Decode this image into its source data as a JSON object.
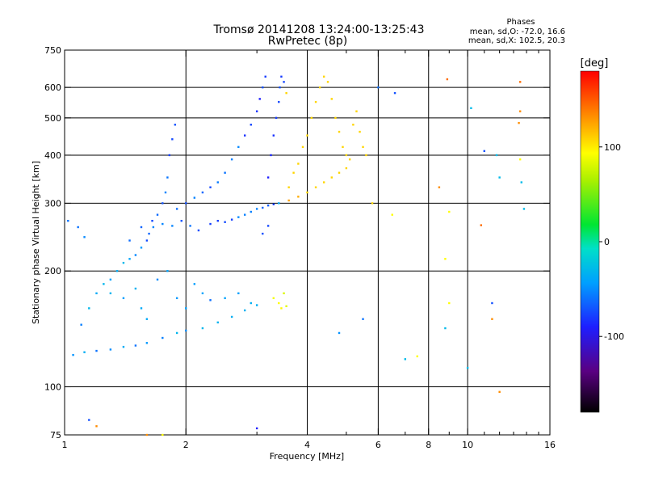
{
  "chart_data": {
    "type": "scatter",
    "title": "Tromsø 20141208 13:24:00-13:25:43",
    "subtitle": "RwPretec (8p)",
    "xlabel": "Frequency [MHz]",
    "ylabel": "Stationary phase Virtual Height [km]",
    "x_scale": "log",
    "y_scale": "log",
    "xlim": [
      1,
      16
    ],
    "ylim": [
      75,
      750
    ],
    "x_ticks": [
      1,
      2,
      4,
      6,
      8,
      10,
      16
    ],
    "x_tick_labels": [
      "1",
      "2",
      "4",
      "6",
      "8",
      "10",
      "16"
    ],
    "x_grid": [
      2,
      4,
      6,
      8,
      10
    ],
    "x_minor_ticks": [
      3,
      5,
      7,
      9,
      11,
      12,
      13,
      14,
      15
    ],
    "y_ticks": [
      75,
      100,
      200,
      300,
      400,
      500,
      600,
      750
    ],
    "y_tick_labels": [
      "75",
      "100",
      "200",
      "300",
      "400",
      "500",
      "600",
      "750"
    ],
    "y_grid": [
      100,
      200,
      300,
      400,
      500,
      600
    ],
    "grid": true,
    "legend": {
      "title": "Phases",
      "lines": [
        "mean, sd,O: -72.0, 16.6",
        "mean, sd,X: 102.5, 20.3"
      ],
      "placement": "top-right"
    },
    "colorbar": {
      "label": "[deg]",
      "range": [
        -180,
        180
      ],
      "ticks": [
        100,
        0,
        -100
      ],
      "tick_labels": [
        "100",
        "0",
        "-100"
      ],
      "colormap": "rainbow"
    },
    "series": [
      {
        "points": [
          {
            "x": 1.05,
            "y": 121
          },
          {
            "x": 1.12,
            "y": 123
          },
          {
            "x": 1.2,
            "y": 124
          },
          {
            "x": 1.3,
            "y": 125
          },
          {
            "x": 1.4,
            "y": 127
          },
          {
            "x": 1.5,
            "y": 128
          },
          {
            "x": 1.6,
            "y": 130
          },
          {
            "x": 1.75,
            "y": 134
          },
          {
            "x": 1.9,
            "y": 138
          },
          {
            "x": 2.0,
            "y": 140
          },
          {
            "x": 2.2,
            "y": 142
          },
          {
            "x": 2.4,
            "y": 147
          },
          {
            "x": 2.6,
            "y": 152
          },
          {
            "x": 2.8,
            "y": 158
          },
          {
            "x": 3.0,
            "y": 163
          },
          {
            "x": 1.1,
            "y": 145
          },
          {
            "x": 1.15,
            "y": 160
          },
          {
            "x": 1.2,
            "y": 175
          },
          {
            "x": 1.25,
            "y": 185
          },
          {
            "x": 1.3,
            "y": 190
          },
          {
            "x": 1.35,
            "y": 200
          },
          {
            "x": 1.4,
            "y": 210
          },
          {
            "x": 1.45,
            "y": 215
          },
          {
            "x": 1.5,
            "y": 220
          },
          {
            "x": 1.55,
            "y": 230
          },
          {
            "x": 1.6,
            "y": 240
          },
          {
            "x": 1.62,
            "y": 250
          },
          {
            "x": 1.66,
            "y": 260
          },
          {
            "x": 1.7,
            "y": 280
          },
          {
            "x": 1.75,
            "y": 300
          },
          {
            "x": 1.78,
            "y": 320
          },
          {
            "x": 1.8,
            "y": 350
          },
          {
            "x": 1.82,
            "y": 400
          },
          {
            "x": 1.85,
            "y": 440
          },
          {
            "x": 1.88,
            "y": 480
          },
          {
            "x": 1.3,
            "y": 175
          },
          {
            "x": 1.4,
            "y": 170
          },
          {
            "x": 1.5,
            "y": 180
          },
          {
            "x": 1.55,
            "y": 160
          },
          {
            "x": 1.6,
            "y": 150
          },
          {
            "x": 1.7,
            "y": 190
          },
          {
            "x": 1.8,
            "y": 200
          },
          {
            "x": 1.9,
            "y": 170
          },
          {
            "x": 2.0,
            "y": 160
          },
          {
            "x": 2.1,
            "y": 185
          },
          {
            "x": 2.2,
            "y": 175
          },
          {
            "x": 2.3,
            "y": 168
          },
          {
            "x": 2.5,
            "y": 170
          },
          {
            "x": 2.7,
            "y": 175
          },
          {
            "x": 2.9,
            "y": 165
          },
          {
            "x": 1.45,
            "y": 240
          },
          {
            "x": 1.55,
            "y": 260
          },
          {
            "x": 1.65,
            "y": 270
          },
          {
            "x": 1.75,
            "y": 265
          },
          {
            "x": 1.85,
            "y": 262
          },
          {
            "x": 1.95,
            "y": 270
          },
          {
            "x": 2.05,
            "y": 262
          },
          {
            "x": 2.15,
            "y": 255
          },
          {
            "x": 2.3,
            "y": 265
          },
          {
            "x": 2.4,
            "y": 270
          },
          {
            "x": 2.5,
            "y": 268
          },
          {
            "x": 2.6,
            "y": 272
          },
          {
            "x": 2.7,
            "y": 276
          },
          {
            "x": 2.8,
            "y": 280
          },
          {
            "x": 2.9,
            "y": 285
          },
          {
            "x": 3.0,
            "y": 290
          },
          {
            "x": 3.1,
            "y": 292
          },
          {
            "x": 3.2,
            "y": 296
          },
          {
            "x": 3.3,
            "y": 298
          },
          {
            "x": 3.4,
            "y": 300
          },
          {
            "x": 1.9,
            "y": 290
          },
          {
            "x": 2.0,
            "y": 300
          },
          {
            "x": 2.1,
            "y": 310
          },
          {
            "x": 2.2,
            "y": 320
          },
          {
            "x": 2.3,
            "y": 330
          },
          {
            "x": 2.4,
            "y": 340
          },
          {
            "x": 2.5,
            "y": 360
          },
          {
            "x": 2.6,
            "y": 390
          },
          {
            "x": 2.7,
            "y": 420
          },
          {
            "x": 2.8,
            "y": 450
          },
          {
            "x": 2.9,
            "y": 480
          },
          {
            "x": 3.0,
            "y": 520
          },
          {
            "x": 3.05,
            "y": 560
          },
          {
            "x": 3.1,
            "y": 600
          },
          {
            "x": 3.15,
            "y": 640
          },
          {
            "x": 3.2,
            "y": 350
          },
          {
            "x": 3.25,
            "y": 400
          },
          {
            "x": 3.3,
            "y": 450
          },
          {
            "x": 3.35,
            "y": 500
          },
          {
            "x": 3.4,
            "y": 550
          },
          {
            "x": 3.42,
            "y": 600
          },
          {
            "x": 3.45,
            "y": 640
          },
          {
            "x": 3.5,
            "y": 620
          },
          {
            "x": 3.55,
            "y": 580
          },
          {
            "x": 3.6,
            "y": 330
          },
          {
            "x": 3.7,
            "y": 360
          },
          {
            "x": 3.8,
            "y": 380
          },
          {
            "x": 3.9,
            "y": 420
          },
          {
            "x": 4.0,
            "y": 450
          },
          {
            "x": 4.1,
            "y": 500
          },
          {
            "x": 4.2,
            "y": 550
          },
          {
            "x": 4.3,
            "y": 600
          },
          {
            "x": 4.4,
            "y": 640
          },
          {
            "x": 4.5,
            "y": 620
          },
          {
            "x": 4.6,
            "y": 560
          },
          {
            "x": 4.7,
            "y": 500
          },
          {
            "x": 4.8,
            "y": 460
          },
          {
            "x": 4.9,
            "y": 420
          },
          {
            "x": 5.0,
            "y": 400
          },
          {
            "x": 5.1,
            "y": 390
          },
          {
            "x": 5.2,
            "y": 480
          },
          {
            "x": 5.3,
            "y": 520
          },
          {
            "x": 5.4,
            "y": 460
          },
          {
            "x": 5.5,
            "y": 420
          },
          {
            "x": 5.6,
            "y": 400
          },
          {
            "x": 3.6,
            "y": 305
          },
          {
            "x": 3.8,
            "y": 312
          },
          {
            "x": 4.0,
            "y": 320
          },
          {
            "x": 4.2,
            "y": 330
          },
          {
            "x": 4.4,
            "y": 340
          },
          {
            "x": 4.6,
            "y": 350
          },
          {
            "x": 4.8,
            "y": 360
          },
          {
            "x": 5.0,
            "y": 370
          },
          {
            "x": 3.3,
            "y": 170
          },
          {
            "x": 3.4,
            "y": 165
          },
          {
            "x": 3.5,
            "y": 175
          },
          {
            "x": 3.45,
            "y": 160
          },
          {
            "x": 3.55,
            "y": 162
          },
          {
            "x": 3.1,
            "y": 250
          },
          {
            "x": 3.2,
            "y": 262
          },
          {
            "x": 1.02,
            "y": 270
          },
          {
            "x": 1.08,
            "y": 260
          },
          {
            "x": 1.12,
            "y": 245
          },
          {
            "x": 1.15,
            "y": 82
          },
          {
            "x": 1.2,
            "y": 79
          },
          {
            "x": 1.6,
            "y": 75
          },
          {
            "x": 1.75,
            "y": 75
          },
          {
            "x": 3.0,
            "y": 78
          },
          {
            "x": 5.5,
            "y": 150
          },
          {
            "x": 4.8,
            "y": 138
          },
          {
            "x": 5.8,
            "y": 300
          },
          {
            "x": 6.5,
            "y": 280
          },
          {
            "x": 6.6,
            "y": 580
          },
          {
            "x": 7.0,
            "y": 118
          },
          {
            "x": 7.5,
            "y": 120
          },
          {
            "x": 8.5,
            "y": 330
          },
          {
            "x": 9.0,
            "y": 285
          },
          {
            "x": 8.8,
            "y": 215
          },
          {
            "x": 9.0,
            "y": 165
          },
          {
            "x": 8.8,
            "y": 142
          },
          {
            "x": 10.0,
            "y": 112
          },
          {
            "x": 10.8,
            "y": 263
          },
          {
            "x": 11.5,
            "y": 165
          },
          {
            "x": 11.5,
            "y": 150
          },
          {
            "x": 11.8,
            "y": 400
          },
          {
            "x": 12.0,
            "y": 350
          },
          {
            "x": 12.0,
            "y": 97
          },
          {
            "x": 13.5,
            "y": 620
          },
          {
            "x": 13.5,
            "y": 520
          },
          {
            "x": 13.4,
            "y": 485
          },
          {
            "x": 13.5,
            "y": 390
          },
          {
            "x": 13.6,
            "y": 340
          },
          {
            "x": 13.8,
            "y": 290
          },
          {
            "x": 11.0,
            "y": 410
          },
          {
            "x": 10.2,
            "y": 530
          },
          {
            "x": 8.9,
            "y": 630
          },
          {
            "x": 6.0,
            "y": 600
          }
        ]
      }
    ]
  }
}
